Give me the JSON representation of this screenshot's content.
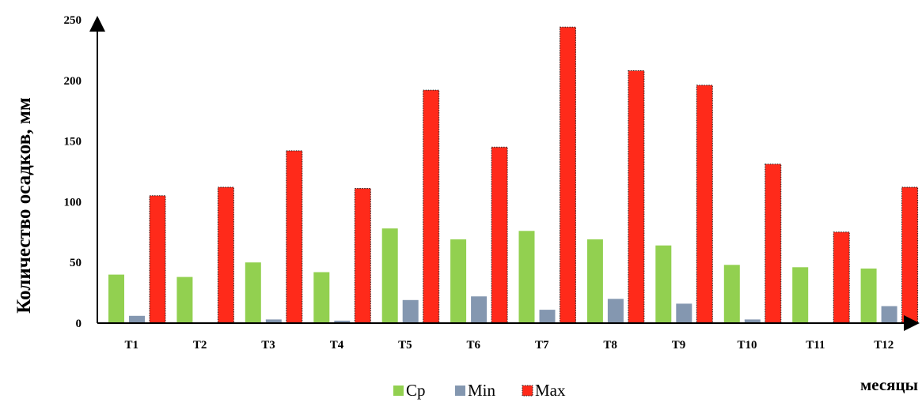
{
  "chart_data": {
    "type": "bar",
    "categories": [
      "Т1",
      "Т2",
      "Т3",
      "Т4",
      "Т5",
      "Т6",
      "Т7",
      "Т8",
      "Т9",
      "Т10",
      "Т11",
      "Т12"
    ],
    "series": [
      {
        "name": "Ср",
        "color": "#92d050",
        "values": [
          40,
          38,
          50,
          42,
          78,
          69,
          76,
          69,
          64,
          48,
          46,
          45
        ]
      },
      {
        "name": "Min",
        "color": "#8497b0",
        "values": [
          6,
          0,
          3,
          2,
          19,
          22,
          11,
          20,
          16,
          3,
          0,
          14
        ]
      },
      {
        "name": "Max",
        "color": "#ff2a1a",
        "values": [
          105,
          112,
          142,
          111,
          192,
          145,
          244,
          208,
          196,
          131,
          75,
          112
        ]
      }
    ],
    "ylim": [
      0,
      250
    ],
    "yticks": [
      0,
      50,
      100,
      150,
      200,
      250
    ],
    "ylabel": "Количество осадков, мм",
    "xlabel": "месяцы",
    "grid": false,
    "legend": "bottom-center"
  }
}
